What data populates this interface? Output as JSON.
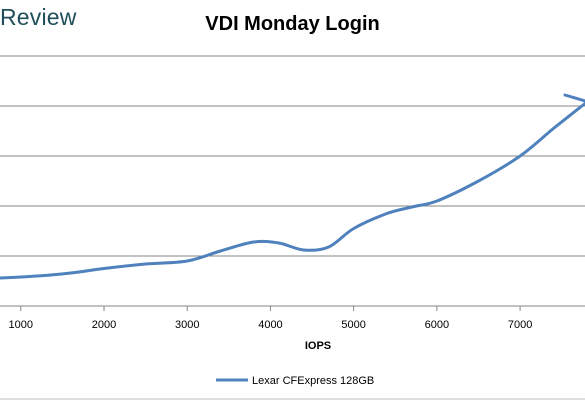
{
  "brand": "Review",
  "chart_data": {
    "type": "line",
    "title": "VDI Monday Login",
    "xlabel": "IOPS",
    "ylabel": "",
    "xlim": [
      750,
      7780
    ],
    "ylim": [
      0,
      6
    ],
    "x_ticks": [
      1000,
      2000,
      3000,
      4000,
      5000,
      6000,
      7000
    ],
    "y_gridlines": [
      1,
      2,
      3,
      4,
      5
    ],
    "grid": true,
    "legend_position": "bottom",
    "series_color": "#4f81bd",
    "series": [
      {
        "name": "Lexar CFExpress 128GB",
        "points": [
          [
            750,
            0.56
          ],
          [
            1200,
            0.6
          ],
          [
            1600,
            0.66
          ],
          [
            2000,
            0.75
          ],
          [
            2500,
            0.84
          ],
          [
            3000,
            0.9
          ],
          [
            3400,
            1.1
          ],
          [
            3800,
            1.28
          ],
          [
            4100,
            1.26
          ],
          [
            4400,
            1.12
          ],
          [
            4700,
            1.18
          ],
          [
            5000,
            1.55
          ],
          [
            5400,
            1.85
          ],
          [
            5700,
            1.98
          ],
          [
            6000,
            2.1
          ],
          [
            6500,
            2.5
          ],
          [
            7000,
            3.0
          ],
          [
            7400,
            3.55
          ],
          [
            7780,
            4.05
          ]
        ],
        "tail": [
          [
            7540,
            4.22
          ],
          [
            7780,
            4.1
          ]
        ]
      }
    ]
  }
}
